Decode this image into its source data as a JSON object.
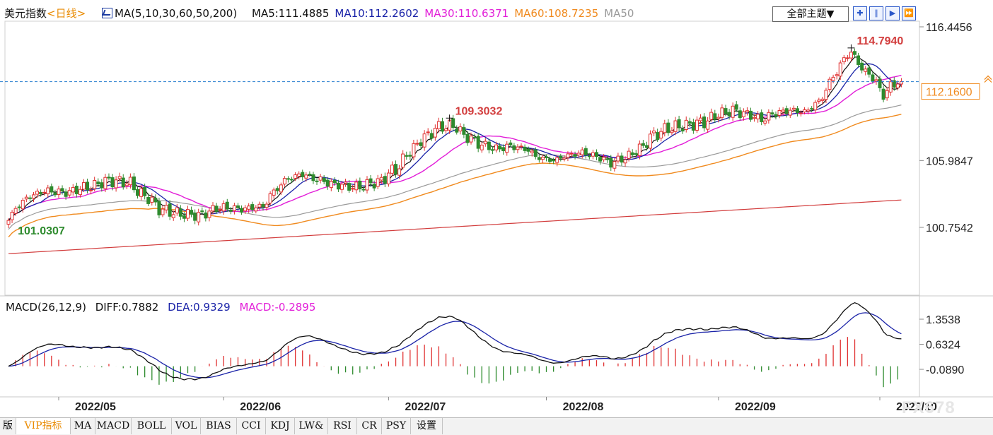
{
  "header": {
    "symbol": "美元指数",
    "period": "<日线>",
    "ma_label": "MA(5,10,30,60,50,200)",
    "ma_values": [
      {
        "name": "MA5",
        "text": "MA5:111.4885",
        "color": "#111111"
      },
      {
        "name": "MA10",
        "text": "MA10:112.2602",
        "color": "#1a23a8"
      },
      {
        "name": "MA30",
        "text": "MA30:110.6371",
        "color": "#e21ed8"
      },
      {
        "name": "MA60",
        "text": "MA60:108.7235",
        "color": "#f08a1e"
      },
      {
        "name": "MA50",
        "text": "MA50",
        "color": "#9a9a9a"
      }
    ],
    "theme_button": "全部主题▼",
    "tools": [
      "plus-grid-icon",
      "bars-icon",
      "play-icon",
      "fast-forward-icon"
    ]
  },
  "macd_header": {
    "label": "MACD(26,12,9)",
    "diff": "DIFF:0.7882",
    "dea": "DEA:0.9329",
    "macd": "MACD:-0.2895"
  },
  "tabs": [
    "版",
    "VIP指标",
    "MA",
    "MACD",
    "BOLL",
    "VOL",
    "BIAS",
    "CCI",
    "KDJ",
    "LW&",
    "RSI",
    "CR",
    "PSY",
    "设置"
  ],
  "active_tab": "VIP指标",
  "watermark": "FX678",
  "colors": {
    "up": "#e03030",
    "down": "#2e8b2e",
    "ma5": "#111111",
    "ma10": "#1a23a8",
    "ma30": "#e21ed8",
    "ma60": "#f08a1e",
    "ma50": "#9a9a9a",
    "ma200": "#d23c3c",
    "diff": "#111111",
    "dea": "#1a23a8",
    "price_line": "#2a7fcf"
  },
  "chart_data": {
    "type": "candlestick",
    "y_ticks": [
      "116.4456",
      "105.9847",
      "100.7542"
    ],
    "y_tick_values": [
      116.4456,
      105.9847,
      100.7542
    ],
    "x_ticks": [
      "2022/05",
      "2022/06",
      "2022/07",
      "2022/08",
      "2022/09",
      "2022/10"
    ],
    "x_tick_index": [
      14,
      60,
      106,
      150,
      198,
      243
    ],
    "current_price": "112.1600",
    "current_price_value": 112.16,
    "annotations": [
      {
        "text": "114.7940",
        "value": 114.794,
        "index": 235,
        "color": "#d23c3c"
      },
      {
        "text": "109.3032",
        "value": 109.3032,
        "index": 123,
        "color": "#d23c3c"
      },
      {
        "text": "101.0307",
        "value": 101.0307,
        "index": 1,
        "color": "#2e8b2e"
      }
    ],
    "close_anchors": [
      [
        0,
        101.3
      ],
      [
        2,
        102.3
      ],
      [
        6,
        103.2
      ],
      [
        10,
        103.6
      ],
      [
        16,
        103.5
      ],
      [
        22,
        103.9
      ],
      [
        28,
        104.4
      ],
      [
        33,
        104.3
      ],
      [
        38,
        103.2
      ],
      [
        43,
        102.1
      ],
      [
        48,
        101.8
      ],
      [
        53,
        101.7
      ],
      [
        59,
        102.3
      ],
      [
        65,
        102.2
      ],
      [
        71,
        102.4
      ],
      [
        74,
        103.6
      ],
      [
        78,
        104.6
      ],
      [
        82,
        104.9
      ],
      [
        86,
        104.5
      ],
      [
        91,
        104.1
      ],
      [
        97,
        103.9
      ],
      [
        103,
        104.3
      ],
      [
        108,
        105.3
      ],
      [
        112,
        106.7
      ],
      [
        116,
        107.8
      ],
      [
        120,
        108.6
      ],
      [
        124,
        108.7
      ],
      [
        128,
        107.8
      ],
      [
        132,
        107.2
      ],
      [
        136,
        106.9
      ],
      [
        140,
        107.1
      ],
      [
        144,
        106.9
      ],
      [
        148,
        106.2
      ],
      [
        152,
        106.0
      ],
      [
        156,
        106.4
      ],
      [
        160,
        106.6
      ],
      [
        164,
        106.3
      ],
      [
        168,
        105.8
      ],
      [
        172,
        106.2
      ],
      [
        176,
        106.9
      ],
      [
        180,
        108.0
      ],
      [
        184,
        108.5
      ],
      [
        188,
        108.7
      ],
      [
        194,
        109.0
      ],
      [
        198,
        109.6
      ],
      [
        202,
        109.9
      ],
      [
        206,
        109.6
      ],
      [
        210,
        109.2
      ],
      [
        214,
        109.7
      ],
      [
        218,
        109.9
      ],
      [
        222,
        109.8
      ],
      [
        226,
        110.6
      ],
      [
        230,
        112.5
      ],
      [
        233,
        113.9
      ],
      [
        235,
        114.5
      ],
      [
        237,
        113.6
      ],
      [
        239,
        112.9
      ],
      [
        241,
        112.5
      ],
      [
        244,
        111.1
      ],
      [
        246,
        111.8
      ],
      [
        248,
        112.16
      ]
    ],
    "ma200_range": [
      98.7,
      102.9
    ],
    "macd": {
      "y_ticks": [
        "1.3538",
        "0.6324",
        "-0.0890"
      ],
      "y_tick_values": [
        1.3538,
        0.6324,
        -0.089
      ],
      "diff": 0.7882,
      "dea": 0.9329,
      "hist": -0.2895
    }
  }
}
